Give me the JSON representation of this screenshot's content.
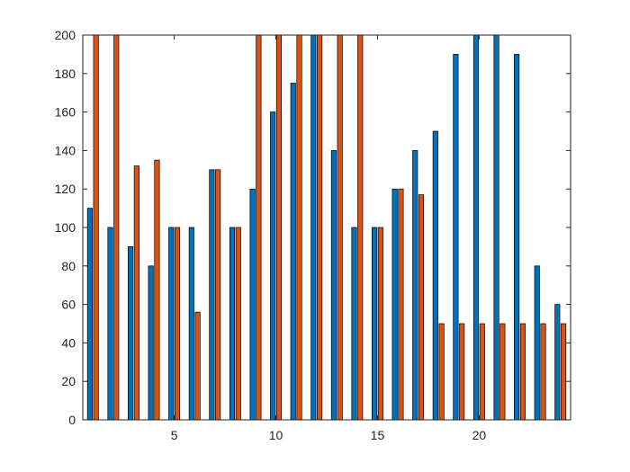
{
  "chart_data": {
    "type": "bar",
    "x": [
      1,
      2,
      3,
      4,
      5,
      6,
      7,
      8,
      9,
      10,
      11,
      12,
      13,
      14,
      15,
      16,
      17,
      18,
      19,
      20,
      21,
      22,
      23,
      24
    ],
    "series": [
      {
        "color": "#0072BD",
        "values": [
          110,
          100,
          90,
          80,
          100,
          100,
          130,
          100,
          120,
          160,
          175,
          200,
          140,
          100,
          100,
          120,
          140,
          150,
          190,
          200,
          200,
          190,
          80,
          60
        ]
      },
      {
        "color": "#D95319",
        "values": [
          200,
          200,
          132,
          135,
          100,
          56,
          130,
          100,
          200,
          200,
          200,
          200,
          200,
          200,
          100,
          120,
          117,
          50,
          50,
          50,
          50,
          50,
          50,
          50
        ]
      }
    ],
    "xlim": [
      0.5,
      24.5
    ],
    "ylim": [
      0,
      200
    ],
    "xticks": [
      5,
      10,
      15,
      20
    ],
    "yticks": [
      0,
      20,
      40,
      60,
      80,
      100,
      120,
      140,
      160,
      180,
      200
    ],
    "grid": false,
    "legend": "none",
    "title": "",
    "xlabel": "",
    "ylabel": ""
  }
}
